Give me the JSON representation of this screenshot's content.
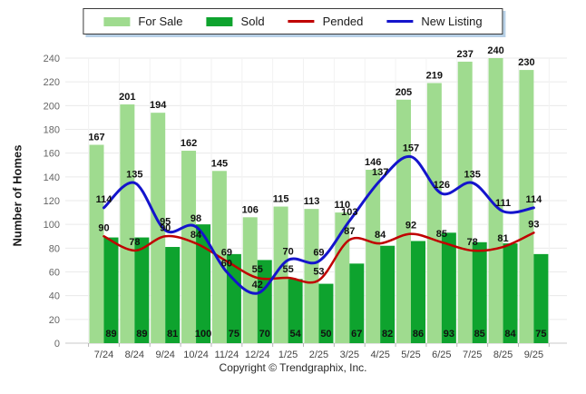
{
  "legend": {
    "items": [
      {
        "label": "For Sale",
        "kind": "swatch",
        "color": "#9fdb8f"
      },
      {
        "label": "Sold",
        "kind": "swatch",
        "color": "#0ea32e"
      },
      {
        "label": "Pended",
        "kind": "line",
        "color": "#c00000"
      },
      {
        "label": "New Listing",
        "kind": "line",
        "color": "#1414cc"
      }
    ]
  },
  "axes": {
    "y_title": "Number of Homes",
    "y_ticks": [
      0,
      20,
      40,
      60,
      80,
      100,
      120,
      140,
      160,
      180,
      200,
      220,
      240
    ]
  },
  "footer": {
    "copyright": "Copyright © Trendgraphix, Inc."
  },
  "colors": {
    "for_sale": "#9fdb8f",
    "sold": "#0ea32e",
    "pended": "#c00000",
    "new_listing": "#1414cc",
    "grid": "#eaeaea",
    "baseline": "#c8c8c8"
  },
  "chart_data": {
    "type": "bar",
    "title": "",
    "xlabel": "",
    "ylabel": "Number of Homes",
    "ylim": [
      0,
      240
    ],
    "ytick_step": 20,
    "grid": true,
    "legend_position": "top",
    "categories": [
      "7/24",
      "8/24",
      "9/24",
      "10/24",
      "11/24",
      "12/24",
      "1/25",
      "2/25",
      "3/25",
      "4/25",
      "5/25",
      "6/25",
      "7/25",
      "8/25",
      "9/25"
    ],
    "series": [
      {
        "name": "For Sale",
        "type": "bar",
        "color": "#9fdb8f",
        "values": [
          167,
          201,
          194,
          162,
          145,
          106,
          115,
          113,
          110,
          146,
          205,
          219,
          237,
          240,
          230
        ]
      },
      {
        "name": "Sold",
        "type": "bar",
        "color": "#0ea32e",
        "values": [
          89,
          89,
          81,
          100,
          75,
          70,
          54,
          50,
          67,
          82,
          86,
          93,
          85,
          84,
          75
        ]
      },
      {
        "name": "Pended",
        "type": "line",
        "color": "#c00000",
        "values": [
          90,
          78,
          90,
          84,
          69,
          55,
          55,
          53,
          87,
          84,
          92,
          85,
          78,
          81,
          93
        ]
      },
      {
        "name": "New Listing",
        "type": "line",
        "color": "#1414cc",
        "values": [
          114,
          135,
          95,
          98,
          60,
          42,
          70,
          69,
          103,
          137,
          157,
          126,
          135,
          111,
          114
        ]
      }
    ]
  }
}
